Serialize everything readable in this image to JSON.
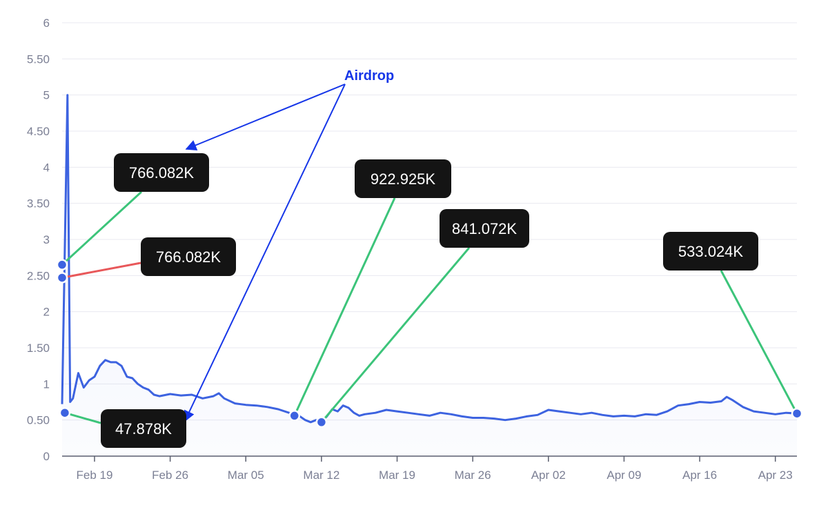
{
  "chart_data": {
    "type": "line",
    "title": "",
    "xlabel": "",
    "ylabel": "",
    "ylim": [
      0,
      6
    ],
    "xlim": [
      "2023-02-16",
      "2023-04-25"
    ],
    "y_ticks": [
      "0",
      "0.50",
      "1",
      "1.50",
      "2",
      "2.50",
      "3",
      "3.50",
      "4",
      "4.50",
      "5",
      "5.50",
      "6"
    ],
    "x_ticks": [
      {
        "label": "Feb 19",
        "date": "2023-02-19"
      },
      {
        "label": "Feb 26",
        "date": "2023-02-26"
      },
      {
        "label": "Mar 05",
        "date": "2023-03-05"
      },
      {
        "label": "Mar 12",
        "date": "2023-03-12"
      },
      {
        "label": "Mar 19",
        "date": "2023-03-19"
      },
      {
        "label": "Mar 26",
        "date": "2023-03-26"
      },
      {
        "label": "Apr 02",
        "date": "2023-04-02"
      },
      {
        "label": "Apr 09",
        "date": "2023-04-09"
      },
      {
        "label": "Apr 16",
        "date": "2023-04-16"
      },
      {
        "label": "Apr 23",
        "date": "2023-04-23"
      }
    ],
    "grid": true,
    "series_color": "#3d63e0",
    "series": [
      {
        "name": "",
        "points": [
          [
            "2023-02-16",
            0.72
          ],
          [
            "2023-02-16T12",
            5.0
          ],
          [
            "2023-02-16T18",
            0.75
          ],
          [
            "2023-02-17",
            0.8
          ],
          [
            "2023-02-17T12",
            1.15
          ],
          [
            "2023-02-18",
            0.95
          ],
          [
            "2023-02-18T12",
            1.05
          ],
          [
            "2023-02-19",
            1.1
          ],
          [
            "2023-02-19T12",
            1.25
          ],
          [
            "2023-02-20",
            1.33
          ],
          [
            "2023-02-20T12",
            1.3
          ],
          [
            "2023-02-21",
            1.3
          ],
          [
            "2023-02-21T12",
            1.25
          ],
          [
            "2023-02-22",
            1.1
          ],
          [
            "2023-02-22T12",
            1.08
          ],
          [
            "2023-02-23",
            1.0
          ],
          [
            "2023-02-23T12",
            0.95
          ],
          [
            "2023-02-24",
            0.92
          ],
          [
            "2023-02-24T12",
            0.85
          ],
          [
            "2023-02-25",
            0.83
          ],
          [
            "2023-02-26",
            0.86
          ],
          [
            "2023-02-27",
            0.84
          ],
          [
            "2023-02-28",
            0.85
          ],
          [
            "2023-03-01",
            0.8
          ],
          [
            "2023-03-02",
            0.83
          ],
          [
            "2023-03-02T12",
            0.87
          ],
          [
            "2023-03-03",
            0.8
          ],
          [
            "2023-03-04",
            0.73
          ],
          [
            "2023-03-05",
            0.71
          ],
          [
            "2023-03-06",
            0.7
          ],
          [
            "2023-03-07",
            0.68
          ],
          [
            "2023-03-08",
            0.65
          ],
          [
            "2023-03-09",
            0.6
          ],
          [
            "2023-03-09T12",
            0.57
          ],
          [
            "2023-03-10",
            0.55
          ],
          [
            "2023-03-10T12",
            0.5
          ],
          [
            "2023-03-11",
            0.47
          ],
          [
            "2023-03-11T12",
            0.5
          ],
          [
            "2023-03-12",
            0.48
          ],
          [
            "2023-03-12T12",
            0.55
          ],
          [
            "2023-03-13",
            0.65
          ],
          [
            "2023-03-13T12",
            0.62
          ],
          [
            "2023-03-14",
            0.7
          ],
          [
            "2023-03-14T12",
            0.67
          ],
          [
            "2023-03-15",
            0.6
          ],
          [
            "2023-03-15T12",
            0.56
          ],
          [
            "2023-03-16",
            0.58
          ],
          [
            "2023-03-17",
            0.6
          ],
          [
            "2023-03-18",
            0.64
          ],
          [
            "2023-03-19",
            0.62
          ],
          [
            "2023-03-20",
            0.6
          ],
          [
            "2023-03-21",
            0.58
          ],
          [
            "2023-03-22",
            0.56
          ],
          [
            "2023-03-23",
            0.6
          ],
          [
            "2023-03-24",
            0.58
          ],
          [
            "2023-03-25",
            0.55
          ],
          [
            "2023-03-26",
            0.53
          ],
          [
            "2023-03-27",
            0.53
          ],
          [
            "2023-03-28",
            0.52
          ],
          [
            "2023-03-29",
            0.5
          ],
          [
            "2023-03-30",
            0.52
          ],
          [
            "2023-03-31",
            0.55
          ],
          [
            "2023-04-01",
            0.57
          ],
          [
            "2023-04-02",
            0.64
          ],
          [
            "2023-04-03",
            0.62
          ],
          [
            "2023-04-04",
            0.6
          ],
          [
            "2023-04-05",
            0.58
          ],
          [
            "2023-04-06",
            0.6
          ],
          [
            "2023-04-07",
            0.57
          ],
          [
            "2023-04-08",
            0.55
          ],
          [
            "2023-04-09",
            0.56
          ],
          [
            "2023-04-10",
            0.55
          ],
          [
            "2023-04-11",
            0.58
          ],
          [
            "2023-04-12",
            0.57
          ],
          [
            "2023-04-13",
            0.62
          ],
          [
            "2023-04-14",
            0.7
          ],
          [
            "2023-04-15",
            0.72
          ],
          [
            "2023-04-16",
            0.75
          ],
          [
            "2023-04-17",
            0.74
          ],
          [
            "2023-04-18",
            0.76
          ],
          [
            "2023-04-18T12",
            0.82
          ],
          [
            "2023-04-19",
            0.78
          ],
          [
            "2023-04-20",
            0.68
          ],
          [
            "2023-04-21",
            0.62
          ],
          [
            "2023-04-22",
            0.6
          ],
          [
            "2023-04-23",
            0.58
          ],
          [
            "2023-04-24",
            0.6
          ],
          [
            "2023-04-25",
            0.59
          ]
        ]
      }
    ],
    "annotation": {
      "text": "Airdrop",
      "color": "#1636e8"
    },
    "callouts": [
      {
        "text": "766.082K",
        "connector_color": "#3cc47a",
        "anchor": [
          "2023-02-16",
          2.65
        ]
      },
      {
        "text": "766.082K",
        "connector_color": "#e8585a",
        "anchor": [
          "2023-02-16",
          2.47
        ]
      },
      {
        "text": "47.878K",
        "connector_color": "#3cc47a",
        "anchor": [
          "2023-02-16T06",
          0.6
        ]
      },
      {
        "text": "922.925K",
        "connector_color": "#3cc47a",
        "anchor": [
          "2023-03-09T12",
          0.56
        ]
      },
      {
        "text": "841.072K",
        "connector_color": "#3cc47a",
        "anchor": [
          "2023-03-12",
          0.47
        ]
      },
      {
        "text": "533.024K",
        "connector_color": "#3cc47a",
        "anchor": [
          "2023-04-25",
          0.59
        ]
      }
    ]
  }
}
